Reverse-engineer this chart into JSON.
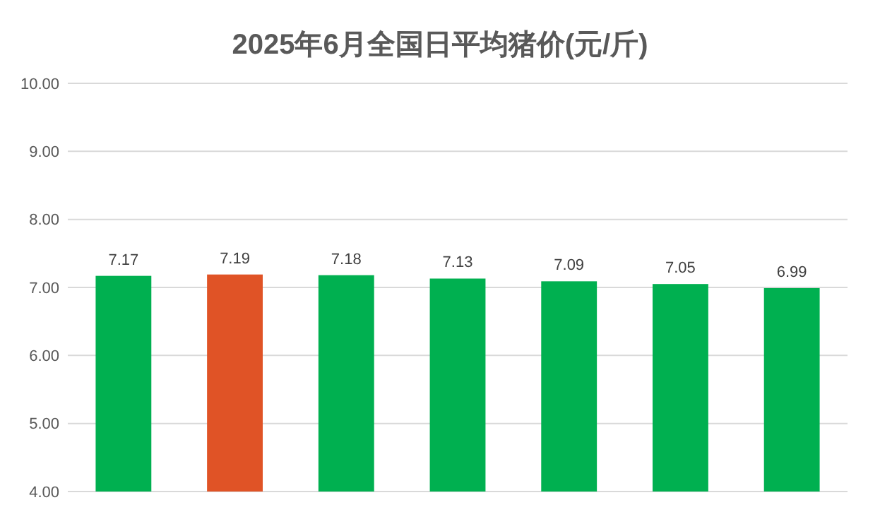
{
  "chart_data": {
    "type": "bar",
    "title": "2025年6月全国日平均猪价(元/斤)",
    "categories": [
      null,
      null,
      null,
      null,
      null,
      null,
      null
    ],
    "values": [
      7.17,
      7.19,
      7.18,
      7.13,
      7.09,
      7.05,
      6.99
    ],
    "colors": [
      "#00b050",
      "#e05326",
      "#00b050",
      "#00b050",
      "#00b050",
      "#00b050",
      "#00b050"
    ],
    "ylim": [
      4,
      10
    ],
    "yticks": [
      {
        "value": 4,
        "label": "4.00"
      },
      {
        "value": 5,
        "label": "5.00"
      },
      {
        "value": 6,
        "label": "6.00"
      },
      {
        "value": 7,
        "label": "7.00"
      },
      {
        "value": 8,
        "label": "8.00"
      },
      {
        "value": 9,
        "label": "9.00"
      },
      {
        "value": 10,
        "label": "10.00"
      }
    ],
    "grid": "y",
    "data_labels": true,
    "tick_labels": "y"
  }
}
